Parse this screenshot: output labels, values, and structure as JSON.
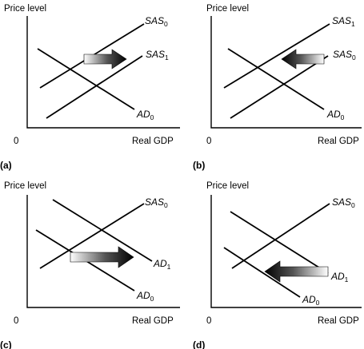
{
  "panels": [
    {
      "id": "(a)",
      "y_axis_label": "Price level",
      "x_axis_label": "Real GDP",
      "origin_label": "0",
      "curves": [
        {
          "name": "SAS",
          "sub": "0"
        },
        {
          "name": "SAS",
          "sub": "1"
        },
        {
          "name": "AD",
          "sub": "0"
        }
      ],
      "arrow_direction": "right"
    },
    {
      "id": "(b)",
      "y_axis_label": "Price level",
      "x_axis_label": "Real GDP",
      "origin_label": "0",
      "curves": [
        {
          "name": "SAS",
          "sub": "1"
        },
        {
          "name": "SAS",
          "sub": "0"
        },
        {
          "name": "AD",
          "sub": "0"
        }
      ],
      "arrow_direction": "left"
    },
    {
      "id": "(c)",
      "y_axis_label": "Price level",
      "x_axis_label": "Real GDP",
      "origin_label": "0",
      "curves": [
        {
          "name": "SAS",
          "sub": "0"
        },
        {
          "name": "AD",
          "sub": "1"
        },
        {
          "name": "AD",
          "sub": "0"
        }
      ],
      "arrow_direction": "right"
    },
    {
      "id": "(d)",
      "y_axis_label": "Price level",
      "x_axis_label": "Real GDP",
      "origin_label": "0",
      "curves": [
        {
          "name": "SAS",
          "sub": "0"
        },
        {
          "name": "AD",
          "sub": "1"
        },
        {
          "name": "AD",
          "sub": "0"
        }
      ],
      "arrow_direction": "left"
    }
  ]
}
